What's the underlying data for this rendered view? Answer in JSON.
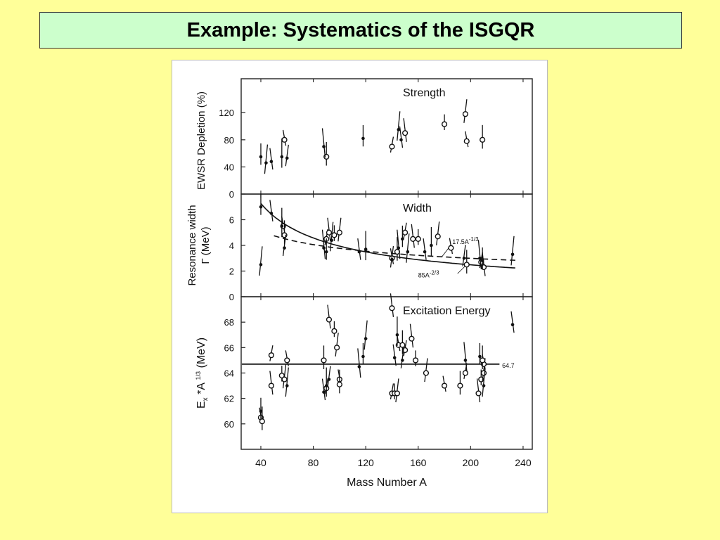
{
  "slide": {
    "title": "Example: Systematics of the ISGQR",
    "colors": {
      "background": "#FFFF99",
      "title_box": "#CCFFCC"
    }
  },
  "chart_data": [
    {
      "type": "scatter",
      "panel": "top",
      "title": "Strength",
      "ylabel": "EWSR Depletion (%)",
      "xlabel": "Mass Number A",
      "xlim": [
        25,
        247
      ],
      "ylim": [
        0,
        170
      ],
      "yticks": [
        0,
        40,
        80,
        120
      ],
      "series": [
        {
          "marker": "open-circle",
          "points": [
            [
              58,
              80
            ],
            [
              90,
              55
            ],
            [
              140,
              70
            ],
            [
              150,
              90
            ],
            [
              180,
              103
            ],
            [
              196,
              118
            ],
            [
              197,
              78
            ],
            [
              209,
              80
            ]
          ]
        },
        {
          "marker": "filled-dot",
          "points": [
            [
              40,
              55
            ],
            [
              44,
              46
            ],
            [
              48,
              48
            ],
            [
              56,
              55
            ],
            [
              60,
              53
            ],
            [
              88,
              70
            ],
            [
              118,
              82
            ],
            [
              145,
              95
            ],
            [
              147,
              80
            ]
          ]
        }
      ]
    },
    {
      "type": "scatter",
      "panel": "middle",
      "title": "Width",
      "ylabel": "Resonance width Γ (MeV)",
      "xlabel": "Mass Number A",
      "xlim": [
        25,
        247
      ],
      "ylim": [
        0,
        8
      ],
      "yticks": [
        0,
        2,
        4,
        6
      ],
      "curves": [
        {
          "label": "85A^-2/3",
          "style": "solid",
          "formula": "85*A^(-2/3)",
          "x_range": [
            40,
            235
          ]
        },
        {
          "label": "17.5A^-1/3",
          "style": "dashed",
          "formula": "17.5*A^(-1/3)",
          "x_range": [
            50,
            235
          ]
        }
      ],
      "series": [
        {
          "marker": "open-circle",
          "points": [
            [
              57,
              5.5
            ],
            [
              58,
              4.8
            ],
            [
              90,
              4.5
            ],
            [
              92,
              5.0
            ],
            [
              96,
              4.8
            ],
            [
              100,
              5.0
            ],
            [
              140,
              3.0
            ],
            [
              144,
              3.5
            ],
            [
              150,
              5.0
            ],
            [
              156,
              4.5
            ],
            [
              160,
              4.5
            ],
            [
              175,
              4.7
            ],
            [
              185,
              3.8
            ],
            [
              197,
              2.5
            ],
            [
              208,
              2.7
            ],
            [
              210,
              2.3
            ]
          ]
        },
        {
          "marker": "filled-dot",
          "points": [
            [
              40,
              7.0
            ],
            [
              40,
              2.5
            ],
            [
              48,
              6.5
            ],
            [
              56,
              5.5
            ],
            [
              58,
              3.8
            ],
            [
              88,
              3.8
            ],
            [
              90,
              3.5
            ],
            [
              94,
              4.4
            ],
            [
              115,
              3.5
            ],
            [
              120,
              3.7
            ],
            [
              140,
              2.9
            ],
            [
              145,
              3.8
            ],
            [
              148,
              4.5
            ],
            [
              152,
              3.5
            ],
            [
              165,
              3.5
            ],
            [
              170,
              4.0
            ],
            [
              195,
              3.0
            ],
            [
              207,
              3.0
            ],
            [
              209,
              2.8
            ],
            [
              232,
              3.3
            ]
          ]
        }
      ]
    },
    {
      "type": "scatter",
      "panel": "bottom",
      "title": "Excitation Energy",
      "ylabel": "Ex*A^1/3 (MeV)",
      "ylabel_parts": {
        "E": "E",
        "sub": "x",
        "mid": " *A ",
        "sup": "1/3",
        "unit": " (MeV)"
      },
      "xlabel": "Mass Number A",
      "xlim": [
        25,
        247
      ],
      "ylim": [
        58,
        70
      ],
      "yticks": [
        60,
        62,
        64,
        66,
        68
      ],
      "xticks": [
        40,
        80,
        120,
        160,
        200,
        240
      ],
      "reference_line": {
        "value": 64.7,
        "label": "64.7"
      },
      "series": [
        {
          "marker": "open-circle",
          "points": [
            [
              40,
              60.5
            ],
            [
              41,
              60.2
            ],
            [
              48,
              65.4
            ],
            [
              48,
              63.0
            ],
            [
              56,
              63.8
            ],
            [
              58,
              63.5
            ],
            [
              60,
              65.0
            ],
            [
              88,
              65.0
            ],
            [
              90,
              62.8
            ],
            [
              92,
              68.2
            ],
            [
              96,
              67.3
            ],
            [
              98,
              66.0
            ],
            [
              100,
              63.5
            ],
            [
              100,
              63.1
            ],
            [
              140,
              62.4
            ],
            [
              140,
              69.1
            ],
            [
              142,
              62.4
            ],
            [
              144,
              62.4
            ],
            [
              145,
              66.2
            ],
            [
              148,
              66.2
            ],
            [
              150,
              65.8
            ],
            [
              155,
              66.7
            ],
            [
              158,
              65.0
            ],
            [
              166,
              64.0
            ],
            [
              180,
              63.0
            ],
            [
              192,
              63.0
            ],
            [
              196,
              64.0
            ],
            [
              206,
              62.4
            ],
            [
              208,
              63.5
            ],
            [
              210,
              64.0
            ],
            [
              210,
              64.7
            ],
            [
              209,
              65.0
            ]
          ]
        },
        {
          "marker": "filled-dot",
          "points": [
            [
              40,
              61.0
            ],
            [
              60,
              63.0
            ],
            [
              88,
              62.5
            ],
            [
              90,
              63.0
            ],
            [
              92,
              63.5
            ],
            [
              115,
              64.5
            ],
            [
              118,
              65.3
            ],
            [
              120,
              66.7
            ],
            [
              142,
              65.2
            ],
            [
              144,
              67.0
            ],
            [
              148,
              65.0
            ],
            [
              196,
              65.0
            ],
            [
              207,
              65.3
            ],
            [
              210,
              63.0
            ],
            [
              232,
              67.8
            ]
          ]
        }
      ]
    }
  ]
}
